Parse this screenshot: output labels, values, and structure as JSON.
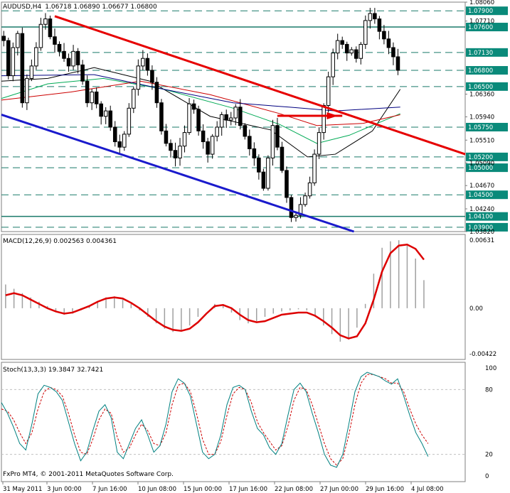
{
  "chart_data": [
    {
      "type": "candlestick",
      "symbol": "AUDUSD,H4",
      "ohlc_readout": "1.06718 1.06890 1.06677 1.06800",
      "ylim": [
        1.0382,
        1.0806
      ],
      "price_ticks": [
        1.0806,
        1.0771,
        1.0636,
        1.0594,
        1.0551,
        1.0509,
        1.0467,
        1.0424,
        1.0382
      ],
      "levels": [
        1.079,
        1.076,
        1.0713,
        1.068,
        1.065,
        1.0575,
        1.052,
        1.05,
        1.045,
        1.041,
        1.039
      ],
      "level_labels": [
        "1.07900",
        "1.07600",
        "1.07130",
        "1.06800",
        "1.06500",
        "1.05750",
        "1.05200",
        "1.05000",
        "1.04500",
        "1.04100",
        "1.03900"
      ],
      "price_tick_labels": [
        "1.08060",
        "1.07710",
        "1.06360",
        "1.05940",
        "1.05510",
        "1.05090",
        "1.04670",
        "1.04240",
        "1.03820"
      ],
      "close_path": [
        1.0735,
        1.067,
        1.0722,
        1.0748,
        1.062,
        1.0665,
        1.0688,
        1.0722,
        1.0765,
        1.0775,
        1.0742,
        1.0728,
        1.0715,
        1.0702,
        1.0688,
        1.0715,
        1.069,
        1.066,
        1.062,
        1.064,
        1.0618,
        1.0595,
        1.0605,
        1.0575,
        1.0548,
        1.0538,
        1.0562,
        1.061,
        1.0645,
        1.0688,
        1.0702,
        1.068,
        1.0658,
        1.062,
        1.0568,
        1.0545,
        1.0532,
        1.0518,
        1.054,
        1.0565,
        1.0618,
        1.0608,
        1.0568,
        1.0548,
        1.0525,
        1.0558,
        1.0575,
        1.0598,
        1.0588,
        1.0592,
        1.0612,
        1.0578,
        1.0558,
        1.0535,
        1.0518,
        1.0492,
        1.0462,
        1.0518,
        1.0578,
        1.0538,
        1.0495,
        1.0445,
        1.0408,
        1.0412,
        1.0432,
        1.0448,
        1.0472,
        1.0525,
        1.0565,
        1.0615,
        1.0668,
        1.0712,
        1.0735,
        1.0728,
        1.0712,
        1.0718,
        1.0702,
        1.0728,
        1.0772,
        1.0785,
        1.0775,
        1.0752,
        1.0738,
        1.0722,
        1.0705,
        1.068
      ],
      "overlays": [
        {
          "color": "#e60000",
          "width": 3,
          "points": [
            [
              0.115,
              1.078
            ],
            [
              1.0,
              1.0525
            ]
          ]
        },
        {
          "color": "#1a1acc",
          "width": 3,
          "points": [
            [
              0.0,
              1.0598
            ],
            [
              0.76,
              1.0382
            ]
          ]
        },
        {
          "color": "#e60000",
          "width": 3,
          "points": [
            [
              0.595,
              1.0596
            ],
            [
              0.735,
              1.0596
            ]
          ]
        }
      ],
      "moving_averages": [
        {
          "color": "#000000",
          "points": [
            [
              0,
              1.066
            ],
            [
              0.1,
              1.0665
            ],
            [
              0.2,
              1.0685
            ],
            [
              0.32,
              1.066
            ],
            [
              0.45,
              1.0595
            ],
            [
              0.58,
              1.057
            ],
            [
              0.66,
              1.052
            ],
            [
              0.72,
              1.0525
            ],
            [
              0.8,
              1.0568
            ],
            [
              0.86,
              1.0645
            ]
          ]
        },
        {
          "color": "#00aa55",
          "points": [
            [
              0,
              1.0628
            ],
            [
              0.1,
              1.0655
            ],
            [
              0.22,
              1.0665
            ],
            [
              0.35,
              1.0645
            ],
            [
              0.5,
              1.061
            ],
            [
              0.6,
              1.058
            ],
            [
              0.68,
              1.0545
            ],
            [
              0.75,
              1.056
            ],
            [
              0.86,
              1.06
            ]
          ]
        },
        {
          "color": "#cc0000",
          "points": [
            [
              0,
              1.0625
            ],
            [
              0.15,
              1.064
            ],
            [
              0.3,
              1.066
            ],
            [
              0.45,
              1.0635
            ],
            [
              0.6,
              1.06
            ],
            [
              0.68,
              1.0578
            ],
            [
              0.78,
              1.0582
            ],
            [
              0.86,
              1.0598
            ]
          ]
        },
        {
          "color": "#000080",
          "points": [
            [
              0,
              1.067
            ],
            [
              0.2,
              1.0672
            ],
            [
              0.35,
              1.0645
            ],
            [
              0.5,
              1.062
            ],
            [
              0.62,
              1.0612
            ],
            [
              0.72,
              1.0605
            ],
            [
              0.86,
              1.0612
            ]
          ]
        }
      ]
    },
    {
      "type": "macd",
      "title": "MACD(12,26,9) 0.002563 0.004361",
      "ylim": [
        -0.00422,
        0.00631
      ],
      "tick_labels": [
        "0.00631",
        "0.00",
        "-0.00422"
      ],
      "histogram": [
        0.0022,
        0.0018,
        0.0014,
        0.001,
        0.0006,
        0.0002,
        -0.0003,
        -0.0006,
        -0.0005,
        -0.0002,
        0.0002,
        0.0006,
        0.001,
        0.0011,
        0.0008,
        0.0004,
        -0.0002,
        -0.0008,
        -0.0014,
        -0.0019,
        -0.0022,
        -0.0021,
        -0.0016,
        -0.0008,
        0.0,
        0.0004,
        0.0003,
        -0.0004,
        -0.0011,
        -0.0014,
        -0.0012,
        -0.0008,
        -0.0005,
        -0.0003,
        -0.0002,
        -0.0001,
        -0.0002,
        -0.0008,
        -0.0016,
        -0.0024,
        -0.0031,
        -0.0029,
        -0.0018,
        0.0004,
        0.0032,
        0.0056,
        0.0062,
        0.0063,
        0.0058,
        0.0046,
        0.0026
      ],
      "signal": [
        0.0012,
        0.0014,
        0.0012,
        0.0008,
        0.0004,
        0.0,
        -0.0003,
        -0.0005,
        -0.0004,
        -0.0001,
        0.0002,
        0.0006,
        0.0009,
        0.001,
        0.0009,
        0.0005,
        0.0,
        -0.0006,
        -0.0012,
        -0.0017,
        -0.002,
        -0.0021,
        -0.0019,
        -0.0013,
        -0.0005,
        0.0002,
        0.0003,
        0.0,
        -0.0006,
        -0.0011,
        -0.0013,
        -0.0012,
        -0.0009,
        -0.0006,
        -0.0005,
        -0.0004,
        -0.0004,
        -0.0007,
        -0.0012,
        -0.0018,
        -0.0025,
        -0.0028,
        -0.0026,
        -0.0014,
        0.0008,
        0.0034,
        0.0051,
        0.0058,
        0.0059,
        0.0055,
        0.0045
      ]
    },
    {
      "type": "stochastic",
      "title": "Stoch(13,3,3) 19.3847 32.7421",
      "ylim": [
        0,
        100
      ],
      "levels": [
        20,
        80
      ],
      "tick_labels": [
        "100",
        "80",
        "20",
        "0"
      ],
      "main": [
        68,
        58,
        45,
        30,
        24,
        48,
        76,
        84,
        82,
        78,
        70,
        50,
        30,
        14,
        22,
        42,
        60,
        66,
        54,
        22,
        16,
        30,
        44,
        52,
        38,
        22,
        28,
        48,
        78,
        90,
        86,
        74,
        48,
        22,
        16,
        20,
        38,
        66,
        82,
        84,
        80,
        60,
        44,
        38,
        26,
        20,
        30,
        56,
        80,
        86,
        78,
        58,
        40,
        20,
        10,
        8,
        20,
        48,
        78,
        92,
        96,
        94,
        92,
        88,
        85,
        90,
        74,
        56,
        40,
        30,
        18
      ],
      "signal": [
        62,
        60,
        52,
        40,
        30,
        40,
        62,
        78,
        82,
        80,
        74,
        58,
        38,
        22,
        20,
        34,
        52,
        62,
        58,
        36,
        22,
        26,
        38,
        48,
        42,
        30,
        28,
        40,
        66,
        84,
        86,
        78,
        58,
        34,
        20,
        20,
        32,
        56,
        76,
        82,
        80,
        68,
        50,
        40,
        32,
        24,
        28,
        46,
        70,
        82,
        80,
        66,
        48,
        30,
        16,
        10,
        16,
        38,
        66,
        86,
        94,
        94,
        92,
        90,
        86,
        86,
        78,
        62,
        48,
        38,
        30
      ]
    }
  ],
  "x_ticks": [
    "31 May 2011",
    "3 Jun 00:00",
    "7 Jun 16:00",
    "10 Jun 08:00",
    "15 Jun 00:00",
    "17 Jun 16:00",
    "22 Jun 08:00",
    "27 Jun 00:00",
    "29 Jun 16:00",
    "4 Jul 08:00"
  ],
  "copyright": "FxPro MT4, © 2001-2011 MetaQuotes Software Corp.",
  "colors": {
    "level_bg": "#0a8a7a",
    "level_line": "#1a7a6a",
    "candle": "#000000",
    "macd_signal": "#dd0000",
    "hist": "#a0a0a0",
    "stoch_main": "#008080",
    "stoch_signal": "#cc0000"
  }
}
